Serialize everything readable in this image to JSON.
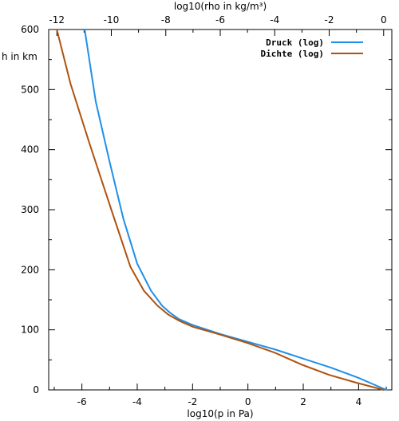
{
  "chart_data": {
    "type": "line",
    "title": "",
    "ylabel": "h in km",
    "xlabel_bottom": "log10(p in Pa)",
    "xlabel_top": "log10(rho in kg/m³)",
    "ylim": [
      0,
      600
    ],
    "xlim_bottom": [
      -7.2,
      5.2
    ],
    "xlim_top": [
      -12.3,
      0.3
    ],
    "grid": false,
    "legend_position": "top-right",
    "y_ticks": [
      0,
      100,
      200,
      300,
      400,
      500,
      600
    ],
    "x_bottom_ticks": [
      -6,
      -4,
      -2,
      0,
      2,
      4
    ],
    "x_top_ticks": [
      -12,
      -10,
      -8,
      -6,
      -4,
      -2,
      0
    ],
    "series": [
      {
        "name": "Druck (log)",
        "axis": "bottom",
        "color": "#1f8fe8",
        "x": [
          5.0,
          4.5,
          4.0,
          3.0,
          2.0,
          1.0,
          0.0,
          -1.0,
          -2.0,
          -2.5,
          -2.8,
          -3.1,
          -3.5,
          -4.0,
          -4.5,
          -5.0,
          -5.5,
          -5.9
        ],
        "y": [
          0,
          10,
          20,
          37,
          52,
          67,
          80,
          93,
          108,
          118,
          128,
          140,
          165,
          210,
          285,
          380,
          480,
          600
        ]
      },
      {
        "name": "Dichte (log)",
        "axis": "top",
        "color": "#b0520f",
        "x": [
          0.0,
          -1.0,
          -2.0,
          -3.0,
          -4.0,
          -5.0,
          -6.0,
          -7.0,
          -7.5,
          -7.9,
          -8.3,
          -8.8,
          -9.3,
          -10.0,
          -10.8,
          -11.5,
          -12.0
        ],
        "y": [
          0,
          12,
          25,
          42,
          62,
          78,
          92,
          105,
          115,
          125,
          140,
          165,
          205,
          300,
          410,
          510,
          600
        ]
      }
    ]
  }
}
